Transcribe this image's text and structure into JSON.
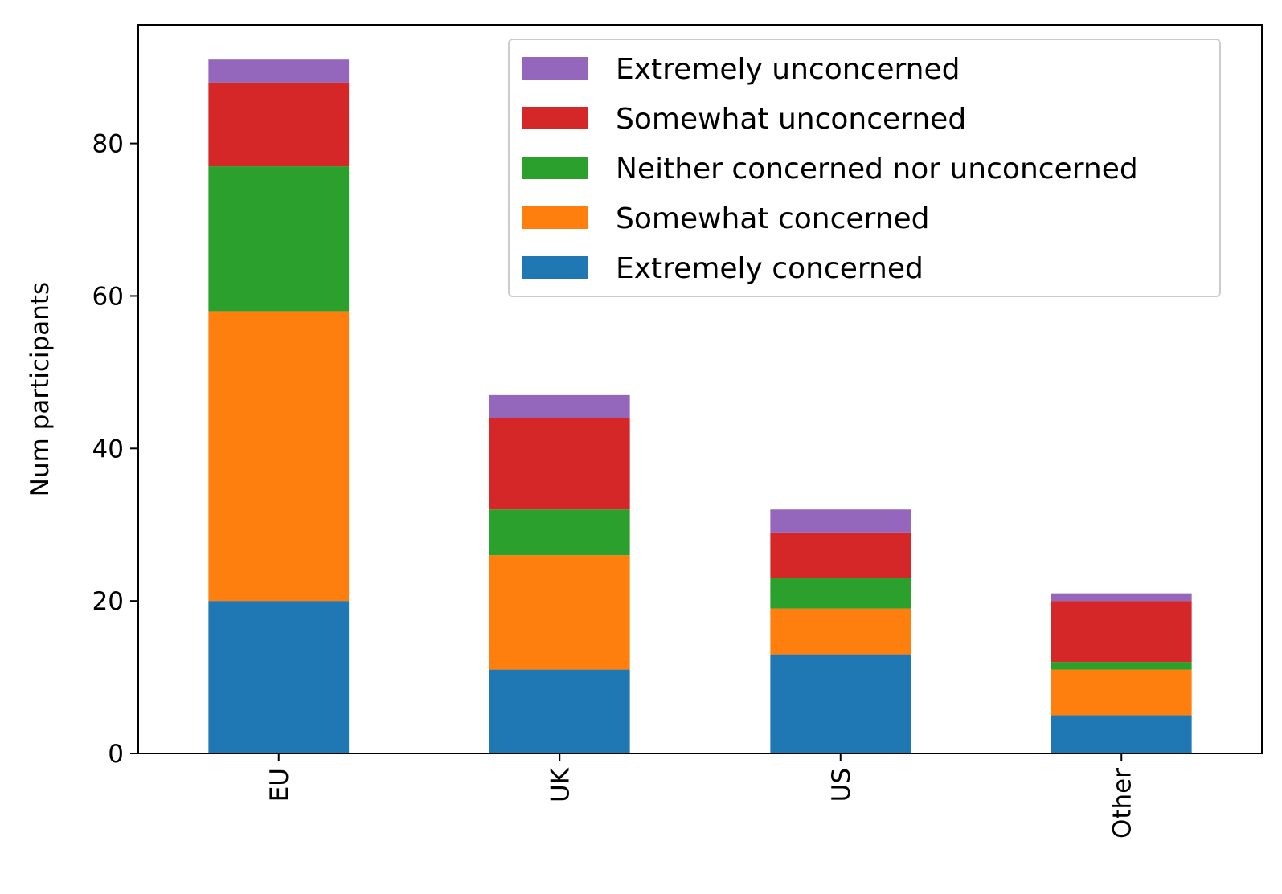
{
  "chart_data": {
    "type": "bar",
    "stacked": true,
    "categories": [
      "EU",
      "UK",
      "US",
      "Other"
    ],
    "series": [
      {
        "name": "Extremely concerned",
        "color": "#1f77b4",
        "values": [
          20,
          11,
          13,
          5
        ]
      },
      {
        "name": "Somewhat concerned",
        "color": "#ff7f0e",
        "values": [
          38,
          15,
          6,
          6
        ]
      },
      {
        "name": "Neither concerned nor unconcerned",
        "color": "#2ca02c",
        "values": [
          19,
          6,
          4,
          1
        ]
      },
      {
        "name": "Somewhat unconcerned",
        "color": "#d62728",
        "values": [
          11,
          12,
          6,
          8
        ]
      },
      {
        "name": "Extremely unconcerned",
        "color": "#9467bd",
        "values": [
          3,
          3,
          3,
          1
        ]
      }
    ],
    "title": "",
    "xlabel": "",
    "ylabel": "Num participants",
    "ylim": [
      0,
      95.55
    ],
    "yticks": [
      0,
      20,
      40,
      60,
      80
    ],
    "xtick_rotation": "vertical",
    "grid": false,
    "legend_placement": "upper right",
    "legend_order": "reversed"
  }
}
